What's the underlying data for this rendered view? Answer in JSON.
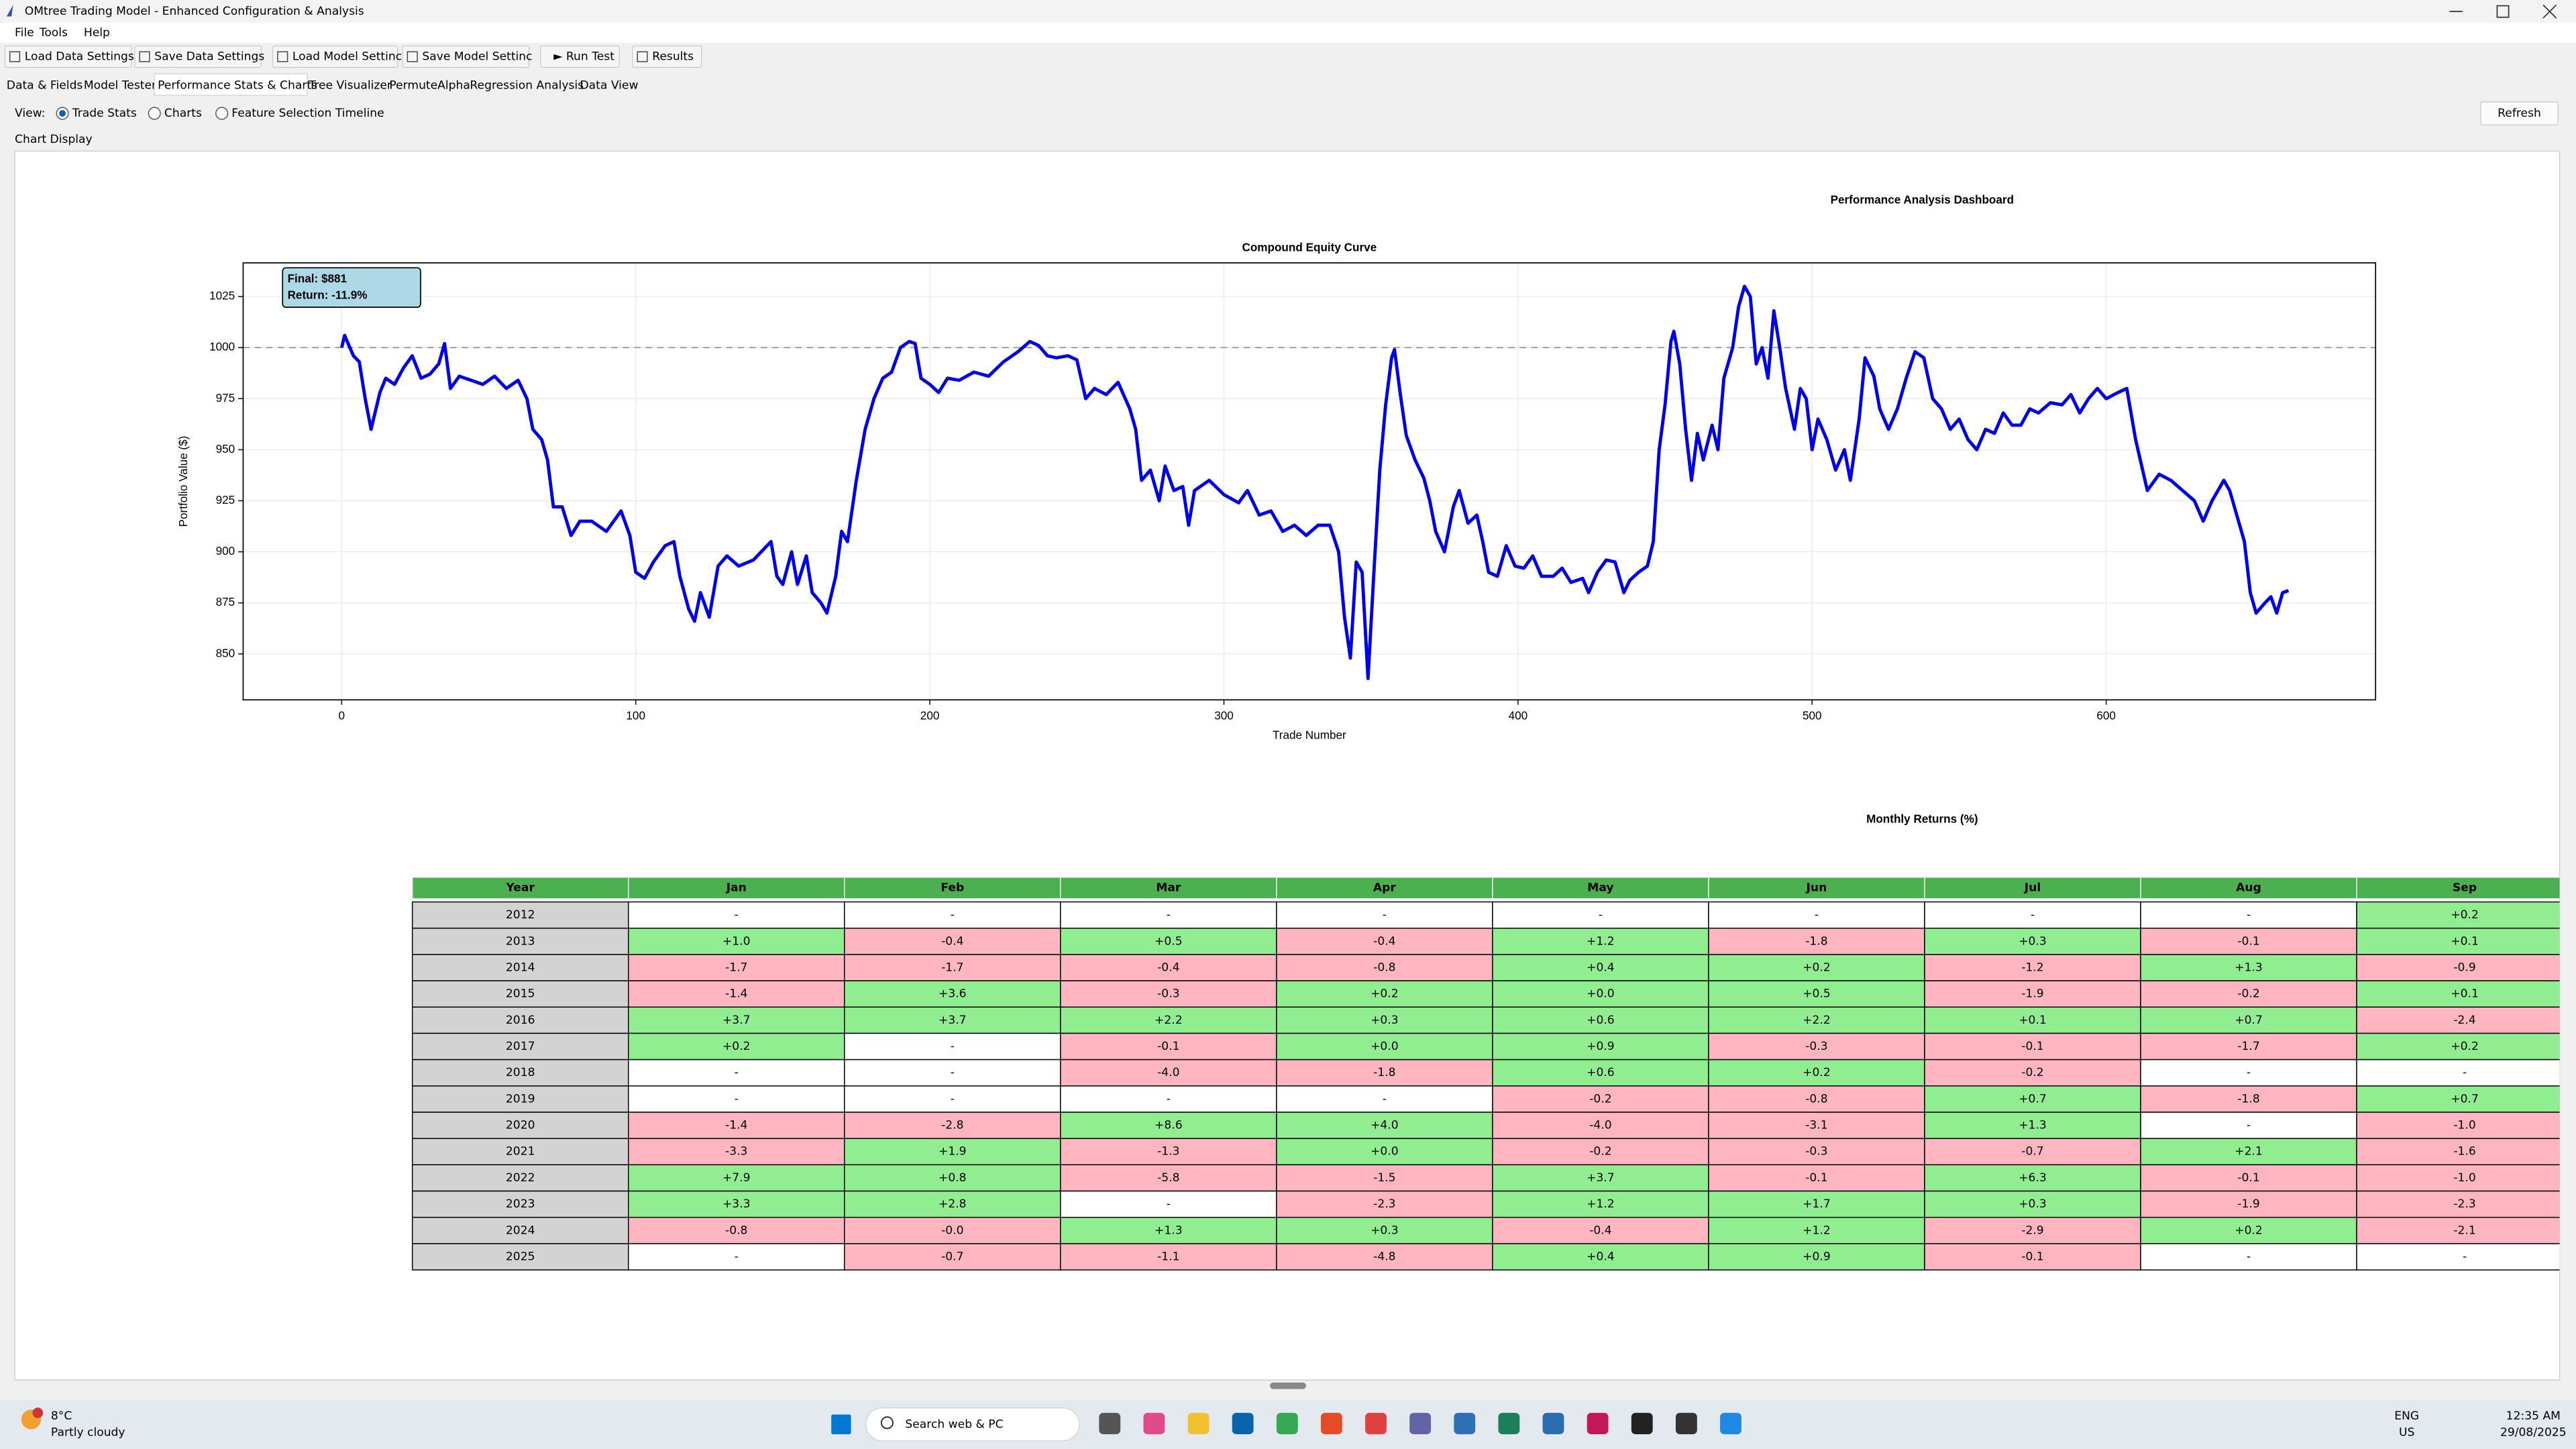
{
  "window": {
    "title": "OMtree Trading Model - Enhanced Configuration & Analysis"
  },
  "menu": [
    "File",
    "Tools",
    "Help"
  ],
  "toolbar": [
    "Load Data Settings",
    "Save Data Settings",
    "Load Model Settinc",
    "Save Model Settinc",
    "► Run Test",
    "Results"
  ],
  "tabs": {
    "items": [
      "Data & Fields",
      "Model Tester",
      "Performance Stats & Charts",
      "Tree Visualizer",
      "PermuteAlpha",
      "Regression Analysis",
      "Data View"
    ],
    "selected_index": 2
  },
  "view": {
    "label": "View:",
    "options": [
      "Trade Stats",
      "Charts",
      "Feature Selection Timeline"
    ],
    "selected_index": 0,
    "refresh": "Refresh"
  },
  "panel_label": "Chart Display",
  "dashboard": {
    "title": "Performance Analysis Dashboard",
    "chart": {
      "type": "line",
      "title": "Compound Equity Curve",
      "x_label": "Trade Number",
      "y_label": "Portfolio Value ($)",
      "color": "#0000e6",
      "grid": true,
      "reference_line": 1000,
      "annotation": [
        "Final: $881",
        "Return: -11.9%"
      ],
      "xlim": [
        -33.5,
        691.6
      ],
      "ylim": [
        827.5,
        1041.5
      ],
      "xticks": [
        0,
        100,
        200,
        300,
        400,
        500,
        600
      ],
      "yticks": [
        850,
        875,
        900,
        925,
        950,
        975,
        1000,
        1025
      ],
      "x": [
        0,
        1,
        4,
        6,
        8,
        10,
        13,
        15,
        18,
        21,
        24,
        27,
        30,
        33,
        35,
        37,
        40,
        44,
        48,
        52,
        56,
        60,
        63,
        65,
        68,
        70,
        72,
        75,
        78,
        81,
        85,
        90,
        95,
        98,
        100,
        103,
        106,
        110,
        113,
        115,
        118,
        120,
        122,
        125,
        128,
        131,
        135,
        140,
        144,
        146,
        148,
        150,
        153,
        155,
        158,
        160,
        163,
        165,
        168,
        170,
        172,
        175,
        178,
        181,
        184,
        187,
        190,
        193,
        195,
        197,
        200,
        203,
        206,
        210,
        215,
        220,
        225,
        230,
        234,
        237,
        240,
        243,
        247,
        250,
        253,
        256,
        260,
        264,
        268,
        270,
        272,
        275,
        278,
        280,
        283,
        286,
        288,
        290,
        295,
        300,
        305,
        308,
        312,
        316,
        320,
        324,
        328,
        332,
        336,
        339,
        341,
        343,
        345,
        347,
        349,
        351,
        353,
        355,
        357,
        358,
        360,
        362,
        365,
        368,
        370,
        372,
        375,
        378,
        380,
        383,
        386,
        388,
        390,
        393,
        396,
        399,
        402,
        405,
        408,
        412,
        415,
        418,
        422,
        424,
        427,
        430,
        433,
        436,
        438,
        441,
        444,
        446,
        448,
        450,
        452,
        453,
        455,
        457,
        459,
        461,
        463,
        466,
        468,
        470,
        473,
        475,
        477,
        479,
        481,
        483,
        485,
        487,
        489,
        491,
        494,
        496,
        498,
        500,
        502,
        505,
        508,
        511,
        513,
        516,
        518,
        521,
        523,
        526,
        529,
        532,
        535,
        538,
        541,
        544,
        547,
        550,
        553,
        556,
        559,
        562,
        565,
        568,
        571,
        574,
        577,
        581,
        585,
        588,
        591,
        594,
        597,
        600,
        604,
        607,
        610,
        614,
        618,
        622,
        626,
        630,
        633,
        636,
        640,
        642,
        645,
        647,
        649,
        651,
        654,
        656,
        658,
        660,
        662
      ],
      "values": [
        1000,
        1006,
        996,
        993,
        975,
        960,
        978,
        985,
        982,
        990,
        996,
        985,
        987,
        992,
        1002,
        980,
        986,
        984,
        982,
        986,
        980,
        984,
        975,
        960,
        955,
        945,
        922,
        922,
        908,
        915,
        915,
        910,
        920,
        908,
        890,
        887,
        895,
        903,
        905,
        888,
        872,
        866,
        880,
        868,
        893,
        898,
        893,
        896,
        902,
        905,
        888,
        884,
        900,
        884,
        898,
        880,
        875,
        870,
        888,
        910,
        905,
        935,
        960,
        975,
        985,
        988,
        1000,
        1003,
        1002,
        985,
        982,
        978,
        985,
        984,
        988,
        986,
        993,
        998,
        1003,
        1001,
        996,
        995,
        996,
        994,
        975,
        980,
        977,
        983,
        970,
        960,
        935,
        940,
        925,
        942,
        930,
        932,
        913,
        930,
        935,
        928,
        924,
        930,
        918,
        920,
        910,
        913,
        908,
        913,
        913,
        900,
        868,
        848,
        895,
        890,
        838,
        890,
        940,
        972,
        995,
        999,
        977,
        957,
        945,
        936,
        925,
        910,
        900,
        922,
        930,
        914,
        918,
        905,
        890,
        888,
        903,
        893,
        892,
        898,
        888,
        888,
        892,
        885,
        887,
        880,
        890,
        896,
        895,
        880,
        886,
        890,
        893,
        905,
        950,
        972,
        1003,
        1008,
        992,
        960,
        935,
        958,
        945,
        962,
        950,
        985,
        1000,
        1020,
        1030,
        1025,
        992,
        1000,
        985,
        1018,
        1000,
        980,
        960,
        980,
        975,
        950,
        965,
        955,
        940,
        950,
        935,
        965,
        995,
        986,
        970,
        960,
        970,
        985,
        998,
        995,
        975,
        970,
        960,
        965,
        955,
        950,
        960,
        958,
        968,
        962,
        962,
        970,
        968,
        973,
        972,
        977,
        968,
        975,
        980,
        975,
        978,
        980,
        955,
        930,
        938,
        935,
        930,
        925,
        915,
        925,
        935,
        930,
        915,
        905,
        880,
        870,
        875,
        878,
        870,
        880,
        881
      ]
    },
    "table": {
      "title": "Monthly Returns (%)",
      "header_color": "#4caf50",
      "year_color": "#d3d3d3",
      "positive_color": "#90ee90",
      "negative_color": "#ffb6c1",
      "empty_color": "#ffffff",
      "columns": [
        "Year",
        "Jan",
        "Feb",
        "Mar",
        "Apr",
        "May",
        "Jun",
        "Jul",
        "Aug",
        "Sep"
      ],
      "rows": [
        [
          "2012",
          "-",
          "-",
          "-",
          "-",
          "-",
          "-",
          "-",
          "-",
          "+0.2"
        ],
        [
          "2013",
          "+1.0",
          "-0.4",
          "+0.5",
          "-0.4",
          "+1.2",
          "-1.8",
          "+0.3",
          "-0.1",
          "+0.1"
        ],
        [
          "2014",
          "-1.7",
          "-1.7",
          "-0.4",
          "-0.8",
          "+0.4",
          "+0.2",
          "-1.2",
          "+1.3",
          "-0.9"
        ],
        [
          "2015",
          "-1.4",
          "+3.6",
          "-0.3",
          "+0.2",
          "+0.0",
          "+0.5",
          "-1.9",
          "-0.2",
          "+0.1"
        ],
        [
          "2016",
          "+3.7",
          "+3.7",
          "+2.2",
          "+0.3",
          "+0.6",
          "+2.2",
          "+0.1",
          "+0.7",
          "-2.4"
        ],
        [
          "2017",
          "+0.2",
          "-",
          "-0.1",
          "+0.0",
          "+0.9",
          "-0.3",
          "-0.1",
          "-1.7",
          "+0.2"
        ],
        [
          "2018",
          "-",
          "-",
          "-4.0",
          "-1.8",
          "+0.6",
          "+0.2",
          "-0.2",
          "-",
          "-"
        ],
        [
          "2019",
          "-",
          "-",
          "-",
          "-",
          "-0.2",
          "-0.8",
          "+0.7",
          "-1.8",
          "+0.7"
        ],
        [
          "2020",
          "-1.4",
          "-2.8",
          "+8.6",
          "+4.0",
          "-4.0",
          "-3.1",
          "+1.3",
          "-",
          "-1.0"
        ],
        [
          "2021",
          "-3.3",
          "+1.9",
          "-1.3",
          "+0.0",
          "-0.2",
          "-0.3",
          "-0.7",
          "+2.1",
          "-1.6"
        ],
        [
          "2022",
          "+7.9",
          "+0.8",
          "-5.8",
          "-1.5",
          "+3.7",
          "-0.1",
          "+6.3",
          "-0.1",
          "-1.0"
        ],
        [
          "2023",
          "+3.3",
          "+2.8",
          "-",
          "-2.3",
          "+1.2",
          "+1.7",
          "+0.3",
          "-1.9",
          "-2.3"
        ],
        [
          "2024",
          "-0.8",
          "-0.0",
          "+1.3",
          "+0.3",
          "-0.4",
          "+1.2",
          "-2.9",
          "+0.2",
          "-2.1"
        ],
        [
          "2025",
          "-",
          "-0.7",
          "-1.1",
          "-4.8",
          "+0.4",
          "+0.9",
          "-0.1",
          "-",
          "-"
        ]
      ]
    }
  },
  "taskbar": {
    "temperature": "8°C",
    "weather": "Partly cloudy",
    "search": "Search web & PC",
    "language": "ENG",
    "region": "US",
    "time": "12:35 AM",
    "date": "29/08/2025"
  }
}
